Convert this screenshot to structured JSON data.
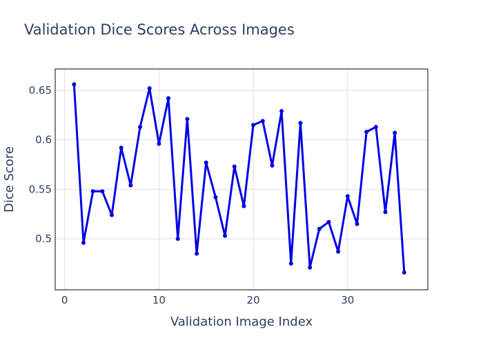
{
  "chart_data": {
    "type": "line",
    "title": "Validation Dice Scores Across Images",
    "xlabel": "Validation Image Index",
    "ylabel": "Dice Score",
    "xlim": [
      -1,
      38.5
    ],
    "ylim": [
      0.4485,
      0.6715
    ],
    "xticks": [
      0,
      10,
      20,
      30
    ],
    "xtick_labels": [
      "0",
      "10",
      "20",
      "30"
    ],
    "yticks": [
      0.5,
      0.55,
      0.6,
      0.65
    ],
    "ytick_labels": [
      "0.5",
      "0.55",
      "0.6",
      "0.65"
    ],
    "grid": true,
    "legend": "none",
    "series": [
      {
        "color": "#0000e6",
        "marker": "circle",
        "x": [
          1,
          2,
          3,
          4,
          5,
          6,
          7,
          8,
          9,
          10,
          11,
          12,
          13,
          14,
          15,
          16,
          17,
          18,
          19,
          20,
          21,
          22,
          23,
          24,
          25,
          26,
          27,
          28,
          29,
          30,
          31,
          32,
          33,
          34,
          35,
          36
        ],
        "values": [
          0.656,
          0.496,
          0.548,
          0.548,
          0.524,
          0.592,
          0.554,
          0.613,
          0.652,
          0.596,
          0.642,
          0.5,
          0.621,
          0.485,
          0.577,
          0.542,
          0.503,
          0.573,
          0.533,
          0.615,
          0.619,
          0.574,
          0.629,
          0.475,
          0.617,
          0.471,
          0.51,
          0.517,
          0.487,
          0.543,
          0.515,
          0.608,
          0.613,
          0.527,
          0.607,
          0.466
        ]
      }
    ]
  }
}
